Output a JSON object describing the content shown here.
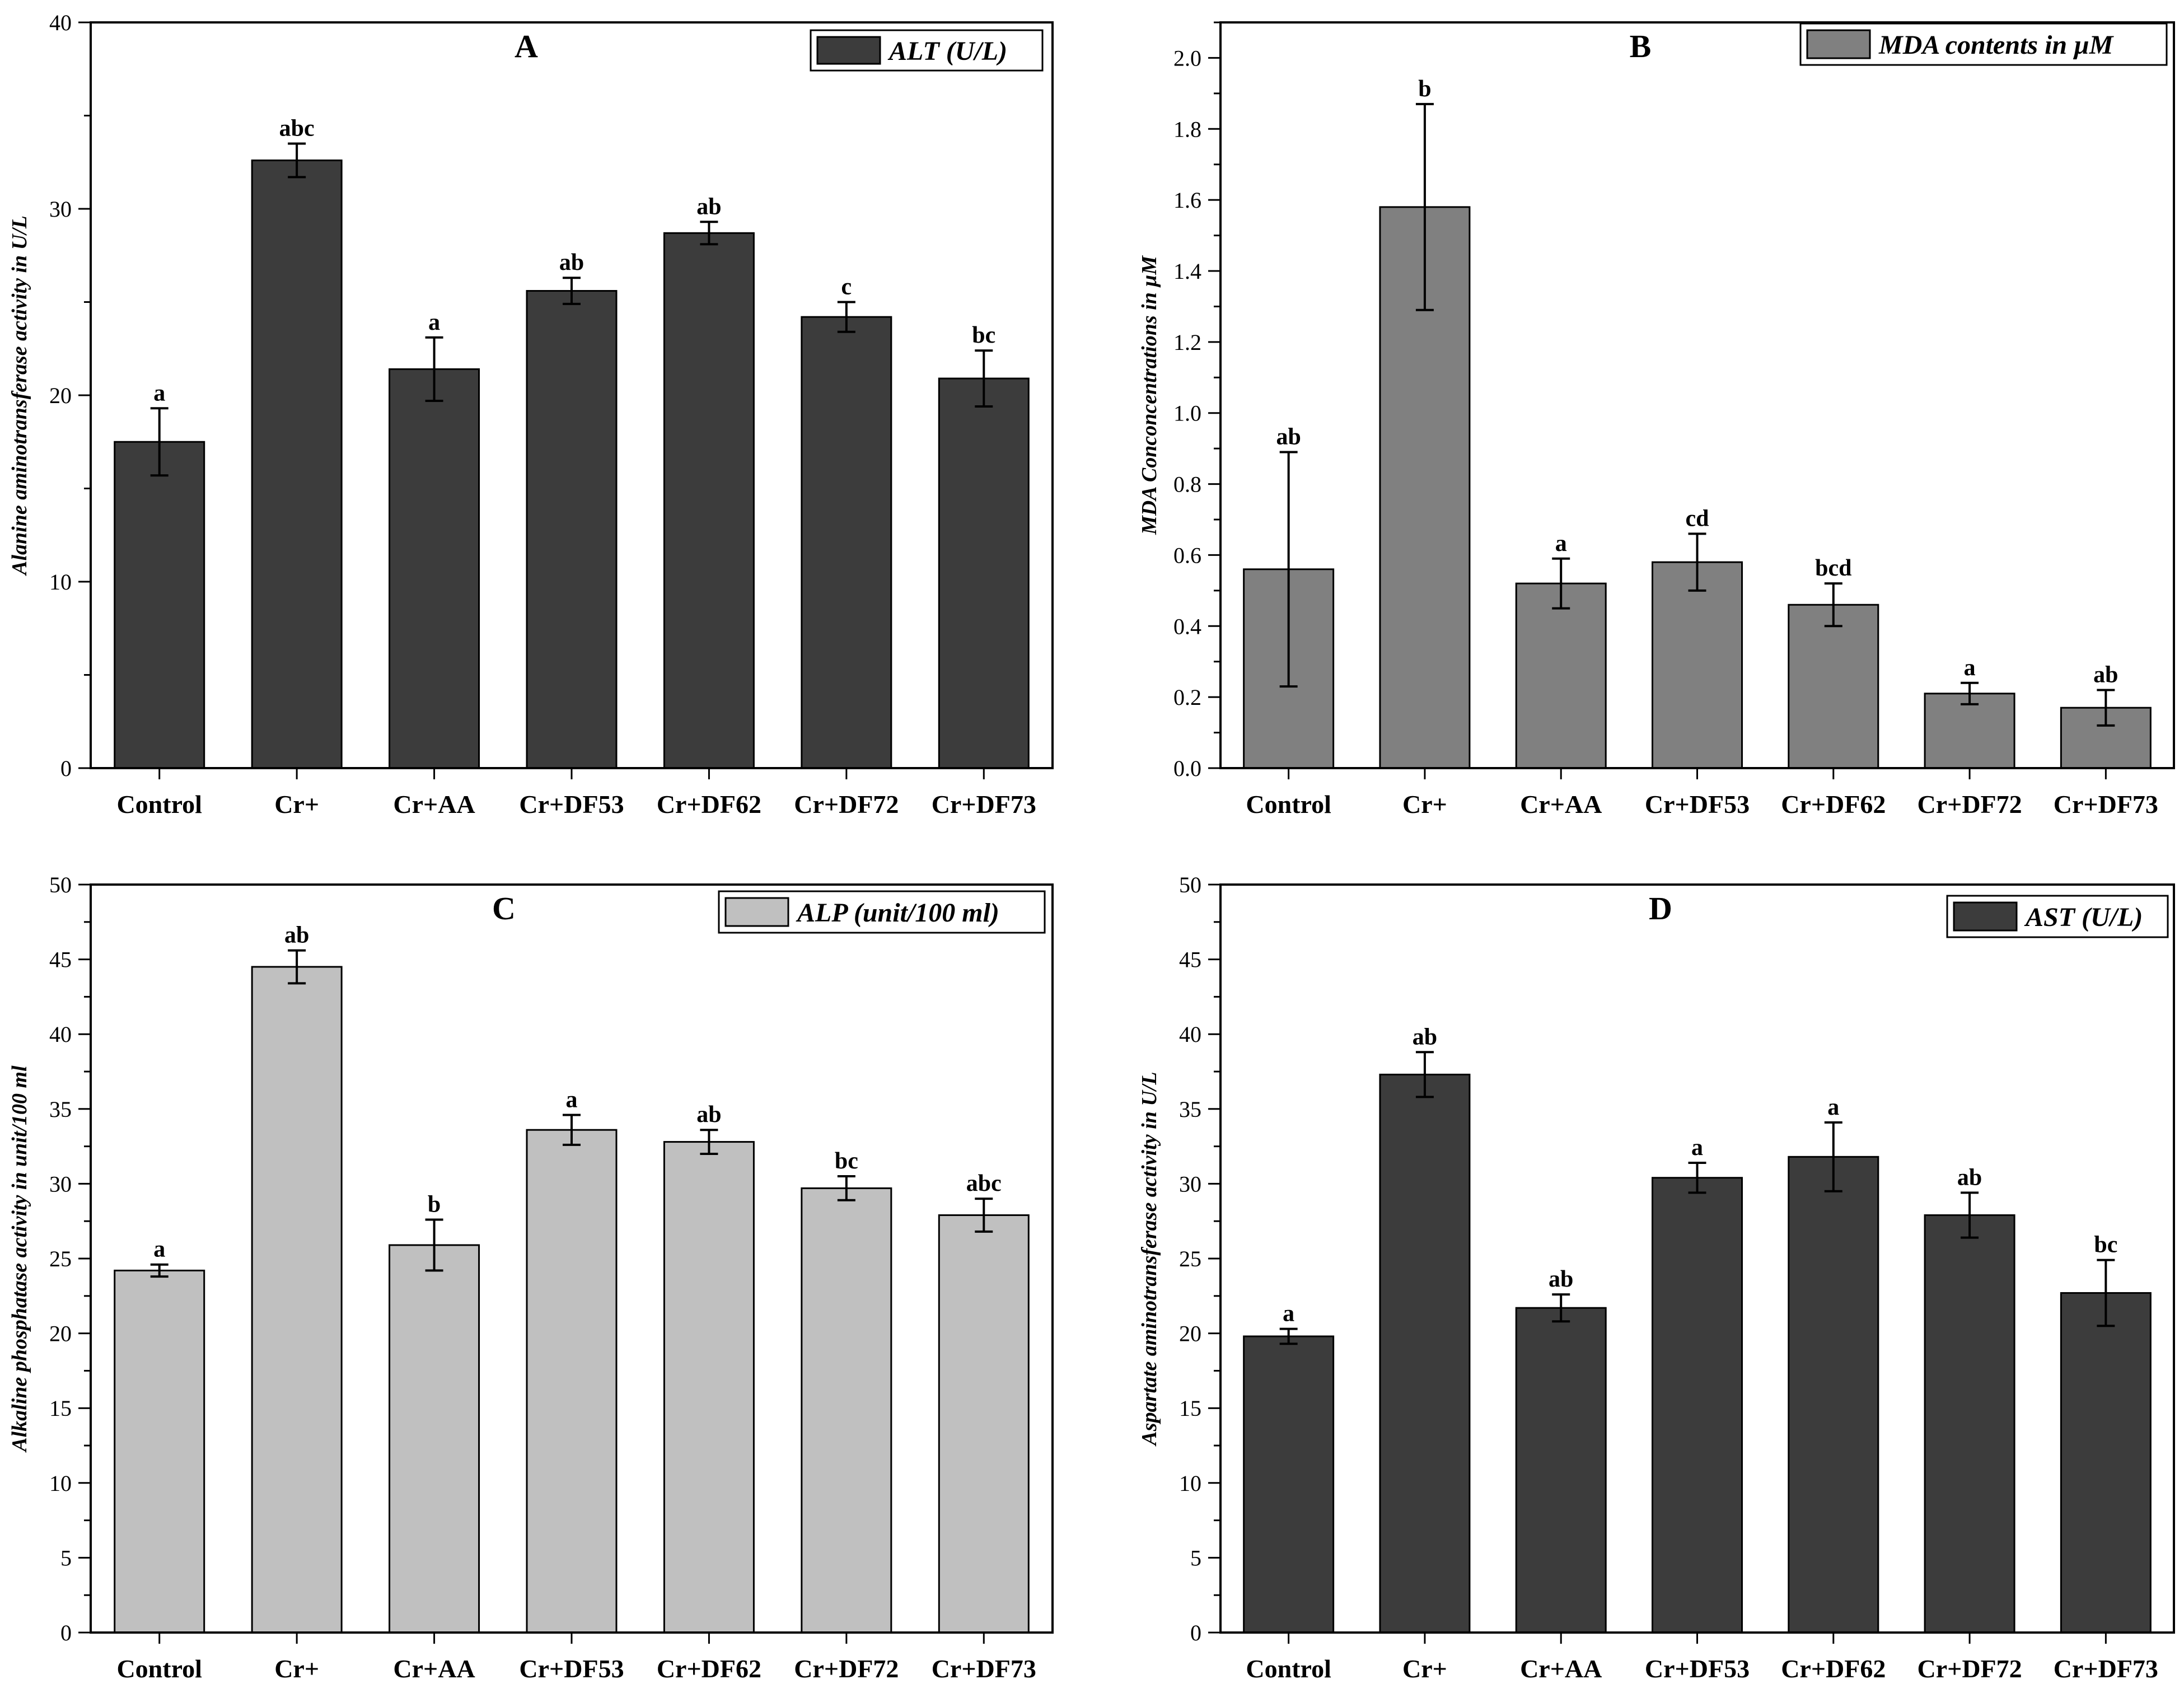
{
  "chart_data": [
    {
      "type": "bar",
      "panel": "A",
      "legend": "ALT (U/L)",
      "legend_position": "top-right",
      "ylabel": "Alanine aminotransferase activity in U/L",
      "xlabel": "",
      "ylim": [
        0,
        40
      ],
      "yticks": [
        0,
        10,
        20,
        30,
        40
      ],
      "categories": [
        "Control",
        "Cr+",
        "Cr+AA",
        "Cr+DF53",
        "Cr+DF62",
        "Cr+DF72",
        "Cr+DF73"
      ],
      "values": [
        17.5,
        32.6,
        21.4,
        25.6,
        28.7,
        24.2,
        20.9
      ],
      "errors": [
        1.8,
        0.9,
        1.7,
        0.7,
        0.6,
        0.8,
        1.5
      ],
      "significance": [
        "a",
        "abc",
        "a",
        "ab",
        "ab",
        "c",
        "bc"
      ],
      "color": "#3c3c3c"
    },
    {
      "type": "bar",
      "panel": "B",
      "legend": "MDA contents in µM",
      "legend_position": "top-right",
      "ylabel": "MDA Conconcentrations in µM",
      "xlabel": "",
      "ylim": [
        0,
        2.1
      ],
      "yticks": [
        0.0,
        0.2,
        0.4,
        0.6,
        0.8,
        1.0,
        1.2,
        1.4,
        1.6,
        1.8,
        2.0
      ],
      "ytick_labels": [
        "0.0",
        "0.2",
        "0.4",
        "0.6",
        "0.8",
        "1.0",
        "1.2",
        "1.4",
        "1.6",
        "1.8",
        "2.0"
      ],
      "categories": [
        "Control",
        "Cr+",
        "Cr+AA",
        "Cr+DF53",
        "Cr+DF62",
        "Cr+DF72",
        "Cr+DF73"
      ],
      "values": [
        0.56,
        1.58,
        0.52,
        0.58,
        0.46,
        0.21,
        0.17
      ],
      "errors": [
        0.33,
        0.29,
        0.07,
        0.08,
        0.06,
        0.03,
        0.05
      ],
      "significance": [
        "ab",
        "b",
        "a",
        "cd",
        "bcd",
        "a",
        "ab"
      ],
      "color": "#808080"
    },
    {
      "type": "bar",
      "panel": "C",
      "legend": "ALP (unit/100 ml)",
      "legend_position": "top-right",
      "ylabel": "Alkaline phosphatase activity in unit/100 ml",
      "xlabel": "",
      "ylim": [
        0,
        50
      ],
      "yticks": [
        0,
        5,
        10,
        15,
        20,
        25,
        30,
        35,
        40,
        45,
        50
      ],
      "categories": [
        "Control",
        "Cr+",
        "Cr+AA",
        "Cr+DF53",
        "Cr+DF62",
        "Cr+DF72",
        "Cr+DF73"
      ],
      "values": [
        24.2,
        44.5,
        25.9,
        33.6,
        32.8,
        29.7,
        27.9
      ],
      "errors": [
        0.4,
        1.1,
        1.7,
        1.0,
        0.8,
        0.8,
        1.1
      ],
      "significance": [
        "a",
        "ab",
        "b",
        "a",
        "ab",
        "bc",
        "abc"
      ],
      "color": "#c0c0c0"
    },
    {
      "type": "bar",
      "panel": "D",
      "legend": "AST (U/L)",
      "legend_position": "top-right",
      "ylabel": "Aspartate aminotransferase activity in U/L",
      "xlabel": "",
      "ylim": [
        0,
        50
      ],
      "yticks": [
        0,
        5,
        10,
        15,
        20,
        25,
        30,
        35,
        40,
        45,
        50
      ],
      "categories": [
        "Control",
        "Cr+",
        "Cr+AA",
        "Cr+DF53",
        "Cr+DF62",
        "Cr+DF72",
        "Cr+DF73"
      ],
      "values": [
        19.8,
        37.3,
        21.7,
        30.4,
        31.8,
        27.9,
        22.7
      ],
      "errors": [
        0.5,
        1.5,
        0.9,
        1.0,
        2.3,
        1.5,
        2.2
      ],
      "significance": [
        "a",
        "ab",
        "ab",
        "a",
        "a",
        "ab",
        "bc"
      ],
      "color": "#3c3c3c"
    }
  ]
}
